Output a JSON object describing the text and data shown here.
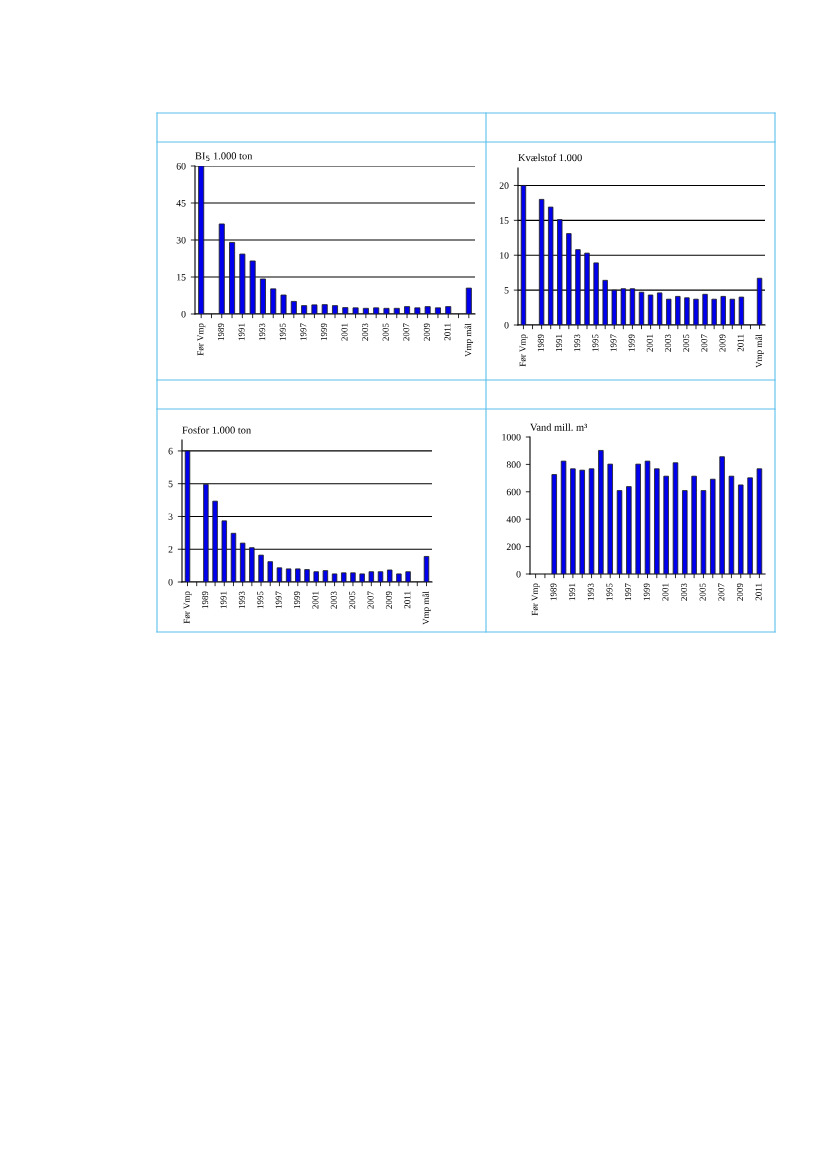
{
  "chart_data": [
    {
      "type": "bar",
      "ylabel": "BI$_{5}$ 1.000 ton",
      "categories": [
        "Før Vmp",
        null,
        "1989",
        null,
        "1991",
        null,
        "1993",
        null,
        "1995",
        null,
        "1997",
        null,
        "1999",
        null,
        "2001",
        null,
        "2003",
        null,
        "2005",
        null,
        "2007",
        null,
        "2009",
        null,
        "2011",
        null,
        "Vmp mål"
      ],
      "values": [
        60,
        null,
        36.5,
        29,
        24.3,
        21.5,
        14.2,
        10.2,
        7.7,
        5.1,
        3.4,
        3.7,
        3.8,
        3.4,
        2.6,
        2.5,
        2.3,
        2.5,
        2.3,
        2.3,
        3,
        2.5,
        3,
        2.5,
        3,
        null,
        10.5
      ],
      "color": "#0000ee",
      "ylim": [
        0,
        60
      ],
      "yticks": [
        0,
        15,
        30,
        45,
        60
      ],
      "grid": "y"
    },
    {
      "type": "bar",
      "ylabel": "Kvælstof 1.000",
      "categories": [
        "Før Vmp",
        null,
        "1989",
        null,
        "1991",
        null,
        "1993",
        null,
        "1995",
        null,
        "1997",
        null,
        "1999",
        null,
        "2001",
        null,
        "2003",
        null,
        "2005",
        null,
        "2007",
        null,
        "2009",
        null,
        "2011",
        null,
        "Vmp mål"
      ],
      "values": [
        20,
        null,
        18,
        16.9,
        15.1,
        13.1,
        10.8,
        10.3,
        8.9,
        6.4,
        5,
        5.2,
        5.2,
        4.7,
        4.3,
        4.6,
        3.7,
        4.1,
        3.9,
        3.7,
        4.4,
        3.7,
        4.1,
        3.7,
        4,
        null,
        6.7
      ],
      "color": "#0000ee",
      "ylim": [
        0,
        22.5
      ],
      "yticks": [
        0,
        5,
        10,
        15,
        20
      ],
      "grid": "y"
    },
    {
      "type": "bar",
      "ylabel": "Fosfor 1.000 ton",
      "categories": [
        "Før Vmp",
        null,
        "1989",
        null,
        "1991",
        null,
        "1993",
        null,
        "1995",
        null,
        "1997",
        null,
        "1999",
        null,
        "2001",
        null,
        "2003",
        null,
        "2005",
        null,
        "2007",
        null,
        "2009",
        null,
        "2011",
        null,
        "Vmp mål"
      ],
      "values": [
        6,
        null,
        4.47,
        3.7,
        2.8,
        2.23,
        1.78,
        1.57,
        1.23,
        0.93,
        0.65,
        0.6,
        0.6,
        0.57,
        0.47,
        0.52,
        0.37,
        0.42,
        0.42,
        0.37,
        0.47,
        0.47,
        0.55,
        0.37,
        0.47,
        null,
        1.17
      ],
      "color": "#0000ee",
      "ylim": [
        0,
        6.5
      ],
      "yticks": [
        0,
        {
          "value": 1.5,
          "label": "2"
        },
        3,
        {
          "value": 4.5,
          "label": "5"
        },
        6
      ],
      "grid": "y"
    },
    {
      "type": "bar",
      "ylabel": "Vand mill. m³",
      "categories": [
        "Før Vmp",
        null,
        "1989",
        null,
        "1991",
        null,
        "1993",
        null,
        "1995",
        null,
        "1997",
        null,
        "1999",
        null,
        "2001",
        null,
        "2003",
        null,
        "2005",
        null,
        "2007",
        null,
        "2009",
        null,
        "2011"
      ],
      "values": [
        null,
        null,
        726,
        824,
        768,
        758,
        768,
        902,
        802,
        609,
        638,
        802,
        824,
        768,
        714,
        812,
        609,
        714,
        609,
        692,
        856,
        714,
        650,
        702,
        768
      ],
      "color": "#0000ee",
      "ylim": [
        0,
        1000
      ],
      "yticks": [
        0,
        200,
        400,
        600,
        800,
        1000
      ]
    }
  ]
}
